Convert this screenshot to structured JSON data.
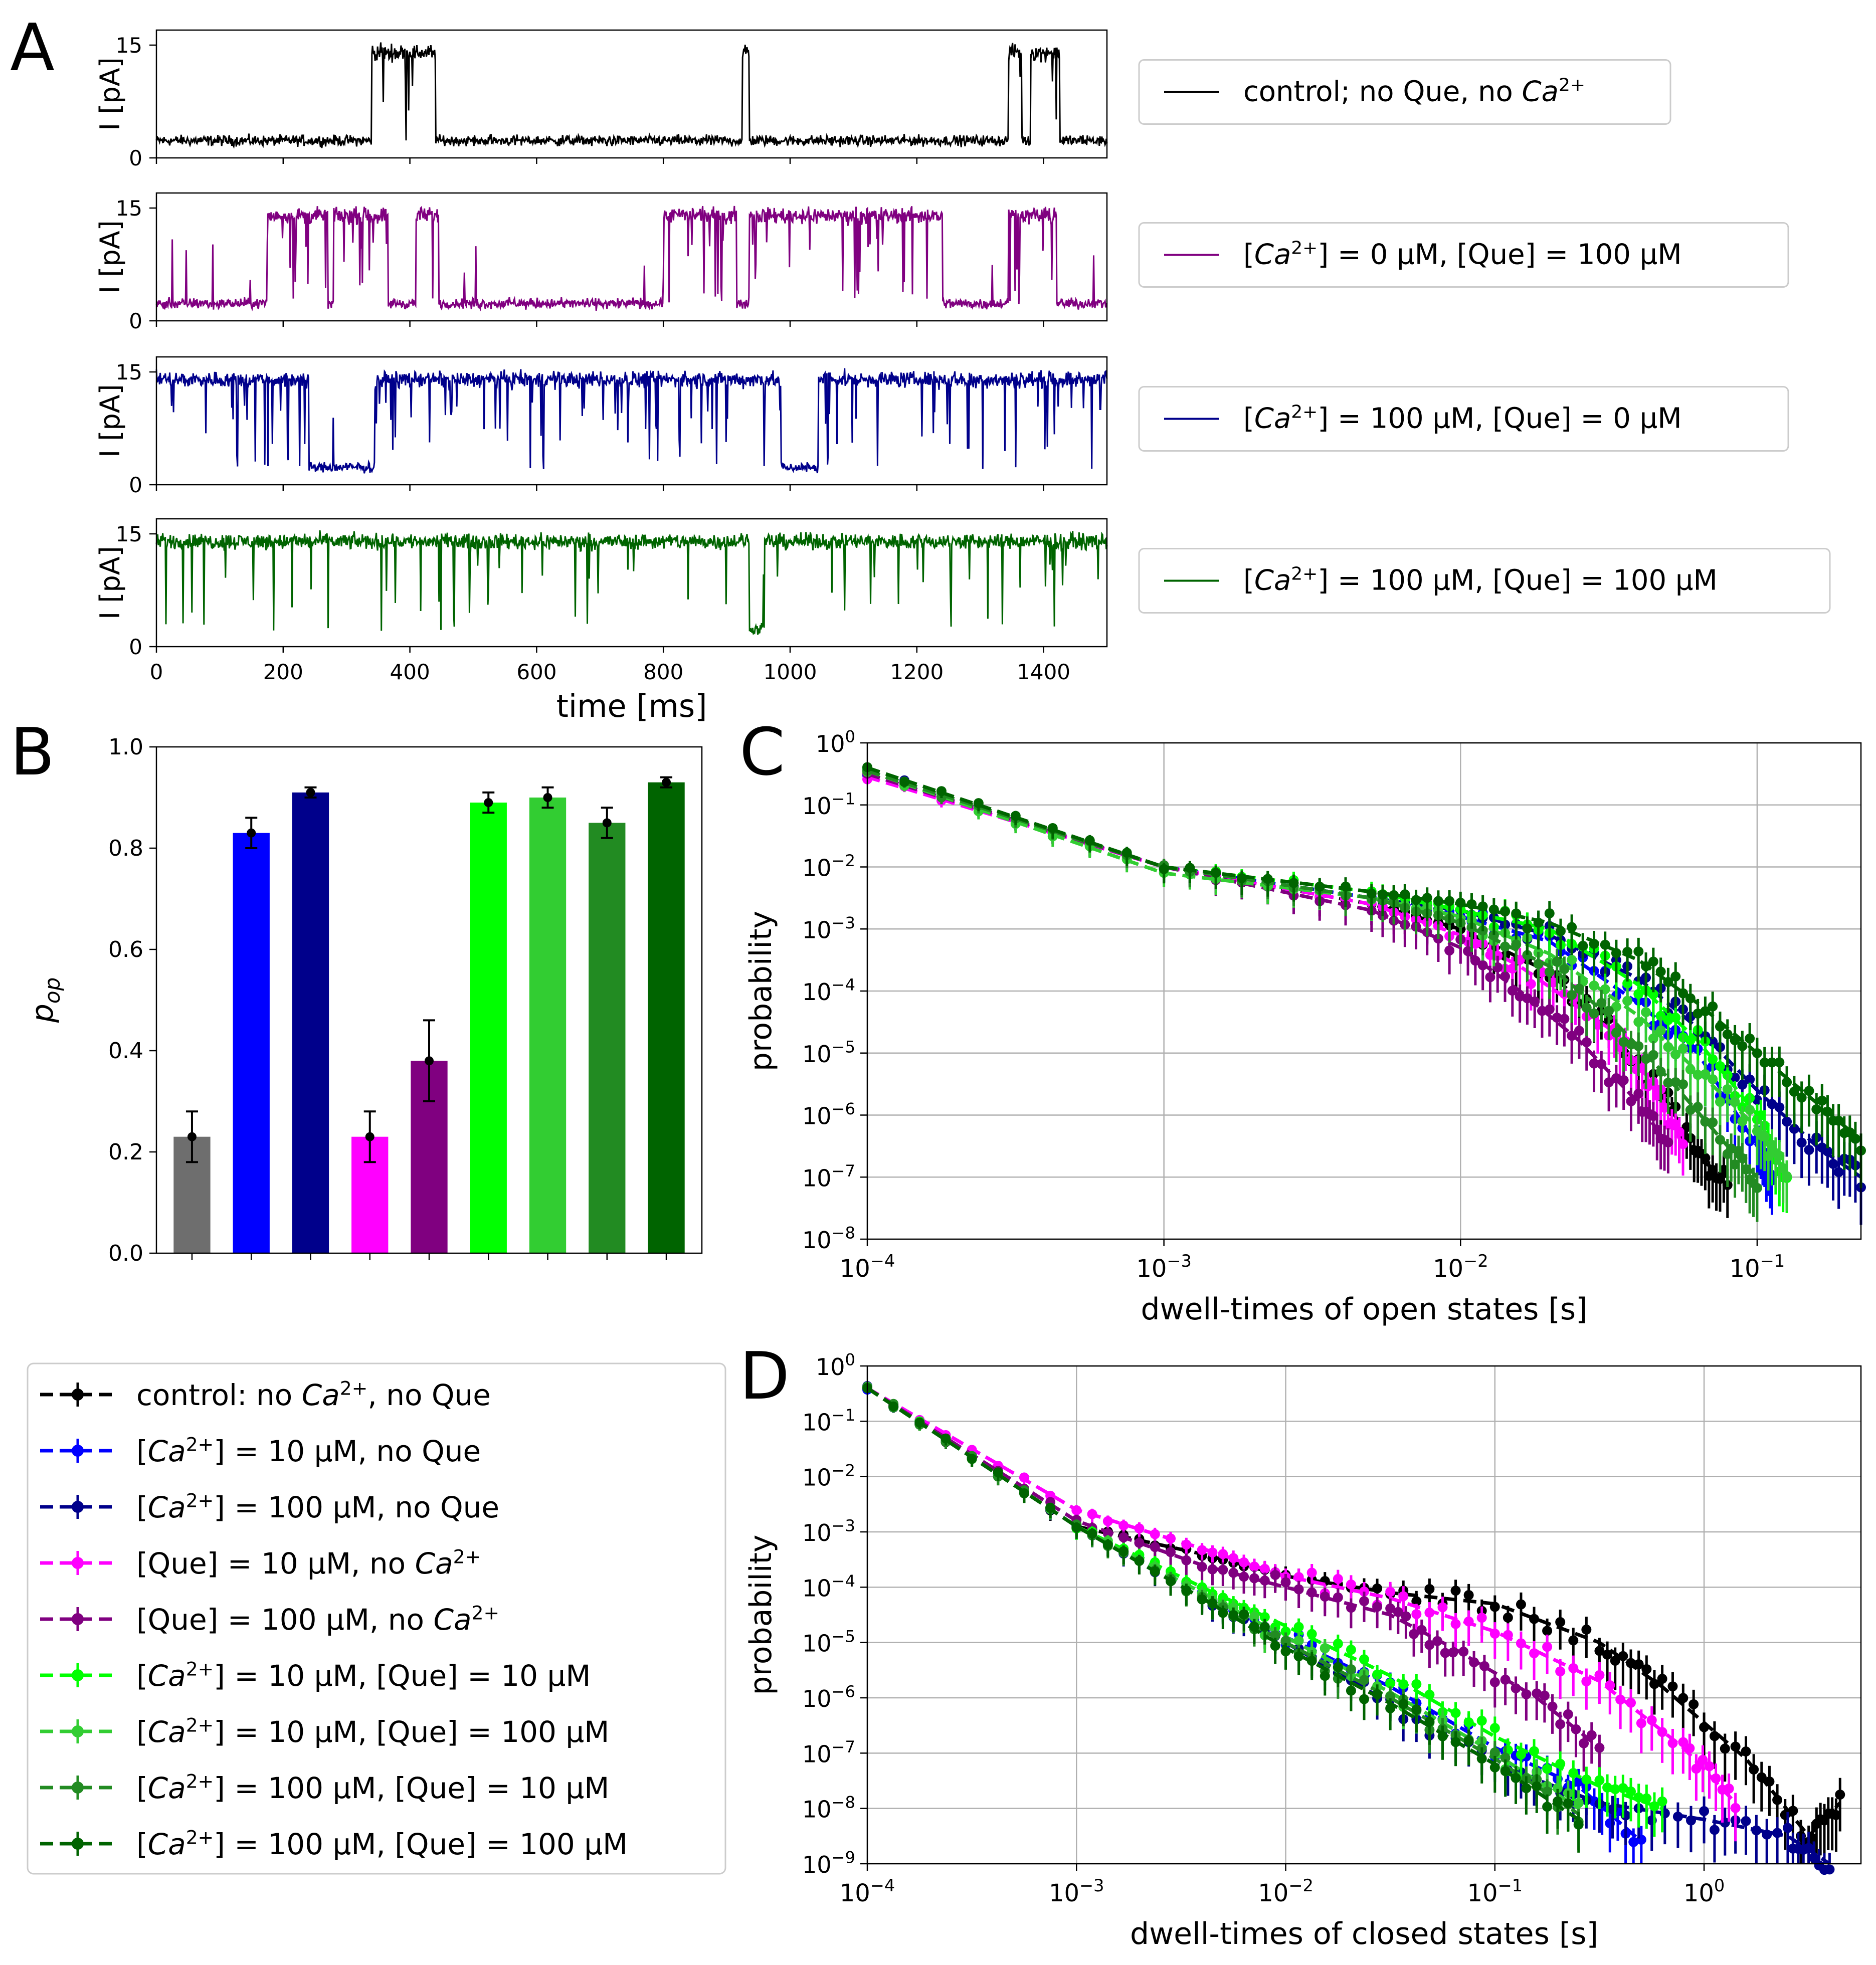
{
  "panel_labels": {
    "a": "A",
    "b": "B",
    "c": "C",
    "d": "D"
  },
  "chart_data": [
    {
      "panel": "A",
      "type": "line",
      "description_note": "four stacked single-channel current traces sharing a time axis",
      "x_label": "time [ms]",
      "x_ticks": [
        "0",
        "200",
        "400",
        "600",
        "800",
        "1000",
        "1200",
        "1400"
      ],
      "x_range": [
        0,
        1500
      ],
      "y_label": "I [pA]",
      "y_ticks": [
        "0",
        "15"
      ],
      "y_range": [
        0,
        17
      ],
      "traces": [
        {
          "name": "control",
          "legend_pre": "control; no Que, no ",
          "legend_ion": "Ca",
          "legend_sup": "2+",
          "legend_post": "",
          "color": "#000000",
          "open_intervals": [
            [
              340,
              440
            ],
            [
              925,
              935
            ],
            [
              1345,
              1365
            ],
            [
              1380,
              1425
            ]
          ],
          "open_fraction_note": "low activity"
        },
        {
          "name": "que100",
          "legend_pre": "[",
          "legend_ion": "Ca",
          "legend_sup": "2+",
          "legend_post": "] = 0 μM, [Que] = 100 μM",
          "color": "#800080",
          "open_intervals": [
            [
              175,
              270
            ],
            [
              280,
              365
            ],
            [
              410,
              445
            ],
            [
              800,
              915
            ],
            [
              935,
              1240
            ],
            [
              1345,
              1420
            ]
          ]
        },
        {
          "name": "ca100",
          "legend_pre": "[",
          "legend_ion": "Ca",
          "legend_sup": "2+",
          "legend_post": "] = 100 μM, [Que] = 0 μM",
          "color": "#00008b",
          "open_intervals": [
            [
              0,
              240
            ],
            [
              345,
              985
            ],
            [
              1045,
              1500
            ]
          ]
        },
        {
          "name": "ca100que100",
          "legend_pre": "[",
          "legend_ion": "Ca",
          "legend_sup": "2+",
          "legend_post": "] = 100 μM, [Que] = 100 μM",
          "color": "#006400",
          "open_intervals": [
            [
              0,
              935
            ],
            [
              960,
              1500
            ]
          ]
        }
      ]
    },
    {
      "panel": "B",
      "type": "bar",
      "y_label": "p",
      "y_label_sub": "op",
      "y_range": [
        0,
        1.0
      ],
      "y_ticks": [
        "0.0",
        "0.2",
        "0.4",
        "0.6",
        "0.8",
        "1.0"
      ],
      "values": [
        0.23,
        0.83,
        0.91,
        0.23,
        0.38,
        0.89,
        0.9,
        0.85,
        0.93
      ],
      "errors": [
        0.05,
        0.03,
        0.01,
        0.05,
        0.08,
        0.02,
        0.02,
        0.03,
        0.01
      ],
      "colors": [
        "#6e6e6e",
        "#0000ff",
        "#00008b",
        "#ff00ff",
        "#800080",
        "#00ff00",
        "#32cd32",
        "#228b22",
        "#006400"
      ]
    },
    {
      "panel": "C",
      "type": "line",
      "x_label": "dwell-times of open states [s]",
      "y_label": "probability",
      "x_log_range": [
        -4,
        -0.65
      ],
      "y_log_range": [
        -8,
        0
      ],
      "x_ticks": [
        {
          "base": "10",
          "exp": "−4",
          "e": -4
        },
        {
          "base": "10",
          "exp": "−3",
          "e": -3
        },
        {
          "base": "10",
          "exp": "−2",
          "e": -2
        },
        {
          "base": "10",
          "exp": "−1",
          "e": -1
        }
      ],
      "y_ticks": [
        {
          "base": "10",
          "exp": "0",
          "e": 0
        },
        {
          "base": "10",
          "exp": "−1",
          "e": -1
        },
        {
          "base": "10",
          "exp": "−2",
          "e": -2
        },
        {
          "base": "10",
          "exp": "−3",
          "e": -3
        },
        {
          "base": "10",
          "exp": "−4",
          "e": -4
        },
        {
          "base": "10",
          "exp": "−5",
          "e": -5
        },
        {
          "base": "10",
          "exp": "−6",
          "e": -6
        },
        {
          "base": "10",
          "exp": "−7",
          "e": -7
        },
        {
          "base": "10",
          "exp": "−8",
          "e": -8
        }
      ],
      "series": [
        {
          "name": "control",
          "color": "#000000",
          "x_log": [
            -4,
            -3,
            -2.3,
            -2,
            -1.7,
            -1.5,
            -1.3,
            -1.2,
            -1.1
          ],
          "y_log": [
            -0.5,
            -2.0,
            -2.6,
            -3.0,
            -3.7,
            -4.6,
            -5.8,
            -6.7,
            -7.0
          ]
        },
        {
          "name": "ca10",
          "color": "#0000ff",
          "x_log": [
            -4,
            -3,
            -2.3,
            -2,
            -1.7,
            -1.4,
            -1.2,
            -1.0,
            -0.95
          ],
          "y_log": [
            -0.5,
            -2.0,
            -2.5,
            -2.8,
            -3.2,
            -4.2,
            -5.0,
            -6.5,
            -7.0
          ]
        },
        {
          "name": "ca100",
          "color": "#00008b",
          "x_log": [
            -4,
            -3,
            -2.3,
            -2,
            -1.7,
            -1.4,
            -1.2,
            -1.0,
            -0.8,
            -0.65
          ],
          "y_log": [
            -0.45,
            -2.0,
            -2.5,
            -2.7,
            -3.1,
            -3.8,
            -4.6,
            -5.6,
            -6.5,
            -7.0
          ]
        },
        {
          "name": "que10",
          "color": "#ff00ff",
          "x_log": [
            -4,
            -3,
            -2.3,
            -2,
            -1.8,
            -1.5,
            -1.35,
            -1.25
          ],
          "y_log": [
            -0.55,
            -2.0,
            -2.6,
            -3.1,
            -3.6,
            -4.6,
            -5.5,
            -6.5
          ]
        },
        {
          "name": "que100",
          "color": "#800080",
          "x_log": [
            -4,
            -3,
            -2.3,
            -2,
            -1.8,
            -1.6,
            -1.4,
            -1.3
          ],
          "y_log": [
            -0.5,
            -2.0,
            -2.7,
            -3.3,
            -4.0,
            -4.8,
            -5.8,
            -6.5
          ]
        },
        {
          "name": "ca10que10",
          "color": "#00ff00",
          "x_log": [
            -4,
            -3,
            -2.3,
            -2,
            -1.7,
            -1.4,
            -1.2,
            -1.0,
            -0.9
          ],
          "y_log": [
            -0.45,
            -2.0,
            -2.4,
            -2.7,
            -3.0,
            -3.9,
            -4.8,
            -6.0,
            -7.0
          ]
        },
        {
          "name": "ca10que100",
          "color": "#32cd32",
          "x_log": [
            -4,
            -3,
            -2.3,
            -2,
            -1.7,
            -1.4,
            -1.2,
            -1.0,
            -0.9
          ],
          "y_log": [
            -0.45,
            -2.1,
            -2.5,
            -2.8,
            -3.4,
            -4.4,
            -5.3,
            -6.2,
            -7.0
          ]
        },
        {
          "name": "ca100que10",
          "color": "#228b22",
          "x_log": [
            -4,
            -3,
            -2.3,
            -2,
            -1.7,
            -1.5,
            -1.3,
            -1.1,
            -1.0
          ],
          "y_log": [
            -0.45,
            -2.0,
            -2.5,
            -2.9,
            -3.6,
            -4.4,
            -5.4,
            -6.5,
            -7.0
          ]
        },
        {
          "name": "ca100que100",
          "color": "#006400",
          "x_log": [
            -4,
            -3,
            -2.3,
            -2,
            -1.7,
            -1.4,
            -1.2,
            -1.0,
            -0.8,
            -0.65
          ],
          "y_log": [
            -0.4,
            -2.0,
            -2.4,
            -2.6,
            -2.9,
            -3.5,
            -4.2,
            -5.0,
            -5.8,
            -6.4
          ]
        }
      ]
    },
    {
      "panel": "D",
      "type": "line",
      "x_label": "dwell-times of closed states [s]",
      "y_label": "probability",
      "x_log_range": [
        -4,
        0.75
      ],
      "y_log_range": [
        -9,
        0
      ],
      "x_ticks": [
        {
          "base": "10",
          "exp": "−4",
          "e": -4
        },
        {
          "base": "10",
          "exp": "−3",
          "e": -3
        },
        {
          "base": "10",
          "exp": "−2",
          "e": -2
        },
        {
          "base": "10",
          "exp": "−1",
          "e": -1
        },
        {
          "base": "10",
          "exp": "0",
          "e": 0
        }
      ],
      "y_ticks": [
        {
          "base": "10",
          "exp": "0",
          "e": 0
        },
        {
          "base": "10",
          "exp": "−1",
          "e": -1
        },
        {
          "base": "10",
          "exp": "−2",
          "e": -2
        },
        {
          "base": "10",
          "exp": "−3",
          "e": -3
        },
        {
          "base": "10",
          "exp": "−4",
          "e": -4
        },
        {
          "base": "10",
          "exp": "−5",
          "e": -5
        },
        {
          "base": "10",
          "exp": "−6",
          "e": -6
        },
        {
          "base": "10",
          "exp": "−7",
          "e": -7
        },
        {
          "base": "10",
          "exp": "−8",
          "e": -8
        },
        {
          "base": "10",
          "exp": "−9",
          "e": -9
        }
      ],
      "series": [
        {
          "name": "control",
          "color": "#000000",
          "x_log": [
            -4,
            -3,
            -2.4,
            -2,
            -1.5,
            -1,
            -0.5,
            -0.2,
            0.2,
            0.5,
            0.65
          ],
          "y_log": [
            -0.4,
            -2.9,
            -3.4,
            -3.8,
            -4.1,
            -4.3,
            -5.0,
            -5.8,
            -7.1,
            -8.5,
            -7.9
          ]
        },
        {
          "name": "ca10",
          "color": "#0000ff",
          "x_log": [
            -4,
            -3,
            -2.4,
            -2,
            -1.5,
            -1,
            -0.6,
            -0.3
          ],
          "y_log": [
            -0.4,
            -2.9,
            -4.1,
            -4.9,
            -5.8,
            -6.9,
            -7.6,
            -8.6
          ]
        },
        {
          "name": "ca100",
          "color": "#00008b",
          "x_log": [
            -4,
            -3,
            -2.4,
            -2,
            -1.5,
            -1,
            -0.5,
            0,
            0.4,
            0.6
          ],
          "y_log": [
            -0.4,
            -2.9,
            -4.2,
            -5.0,
            -6.1,
            -7.2,
            -7.9,
            -8.2,
            -8.5,
            -9.0
          ]
        },
        {
          "name": "que10",
          "color": "#ff00ff",
          "x_log": [
            -4,
            -3,
            -2.4,
            -2,
            -1.5,
            -1,
            -0.5,
            -0.1,
            0.15
          ],
          "y_log": [
            -0.4,
            -2.6,
            -3.3,
            -3.8,
            -4.2,
            -4.8,
            -5.7,
            -6.9,
            -7.9
          ]
        },
        {
          "name": "que100",
          "color": "#800080",
          "x_log": [
            -4,
            -3,
            -2.4,
            -2,
            -1.5,
            -1.2,
            -0.8,
            -0.5
          ],
          "y_log": [
            -0.4,
            -2.8,
            -3.6,
            -4.0,
            -4.5,
            -5.1,
            -6.0,
            -6.9
          ]
        },
        {
          "name": "ca10que10",
          "color": "#00ff00",
          "x_log": [
            -4,
            -3,
            -2.4,
            -2,
            -1.5,
            -1,
            -0.5,
            -0.2
          ],
          "y_log": [
            -0.4,
            -2.9,
            -4.0,
            -4.7,
            -5.6,
            -6.7,
            -7.6,
            -8.0
          ]
        },
        {
          "name": "ca10que100",
          "color": "#32cd32",
          "x_log": [
            -4,
            -3,
            -2.4,
            -2,
            -1.5,
            -1,
            -0.6
          ],
          "y_log": [
            -0.4,
            -2.9,
            -4.1,
            -4.9,
            -5.9,
            -7.0,
            -8.0
          ]
        },
        {
          "name": "ca100que10",
          "color": "#228b22",
          "x_log": [
            -4,
            -3,
            -2.4,
            -2,
            -1.5,
            -1,
            -0.6
          ],
          "y_log": [
            -0.4,
            -2.9,
            -4.2,
            -5.0,
            -6.0,
            -7.1,
            -8.1
          ]
        },
        {
          "name": "ca100que100",
          "color": "#006400",
          "x_log": [
            -4,
            -3,
            -2.4,
            -2,
            -1.5,
            -1,
            -0.6
          ],
          "y_log": [
            -0.4,
            -2.9,
            -4.2,
            -5.1,
            -6.1,
            -7.2,
            -8.2
          ]
        }
      ]
    }
  ],
  "legend": {
    "entries": [
      {
        "color": "#000000",
        "pre": "control: no ",
        "ion": "Ca",
        "sup": "2+",
        "post": ", no Que"
      },
      {
        "color": "#0000ff",
        "pre": "[",
        "ion": "Ca",
        "sup": "2+",
        "post": "] = 10 μM, no Que"
      },
      {
        "color": "#00008b",
        "pre": "[",
        "ion": "Ca",
        "sup": "2+",
        "post": "] = 100 μM, no Que"
      },
      {
        "color": "#ff00ff",
        "pre": "[Que] = 10 μM, no ",
        "ion": "Ca",
        "sup": "2+",
        "post": ""
      },
      {
        "color": "#800080",
        "pre": "[Que] = 100 μM, no ",
        "ion": "Ca",
        "sup": "2+",
        "post": ""
      },
      {
        "color": "#00ff00",
        "pre": "[",
        "ion": "Ca",
        "sup": "2+",
        "post": "] = 10 μM, [Que] = 10 μM"
      },
      {
        "color": "#32cd32",
        "pre": "[",
        "ion": "Ca",
        "sup": "2+",
        "post": "] = 10 μM, [Que] = 100 μM"
      },
      {
        "color": "#228b22",
        "pre": "[",
        "ion": "Ca",
        "sup": "2+",
        "post": "] = 100 μM, [Que] = 10 μM"
      },
      {
        "color": "#006400",
        "pre": "[",
        "ion": "Ca",
        "sup": "2+",
        "post": "] = 100 μM, [Que] = 100 μM"
      }
    ]
  }
}
